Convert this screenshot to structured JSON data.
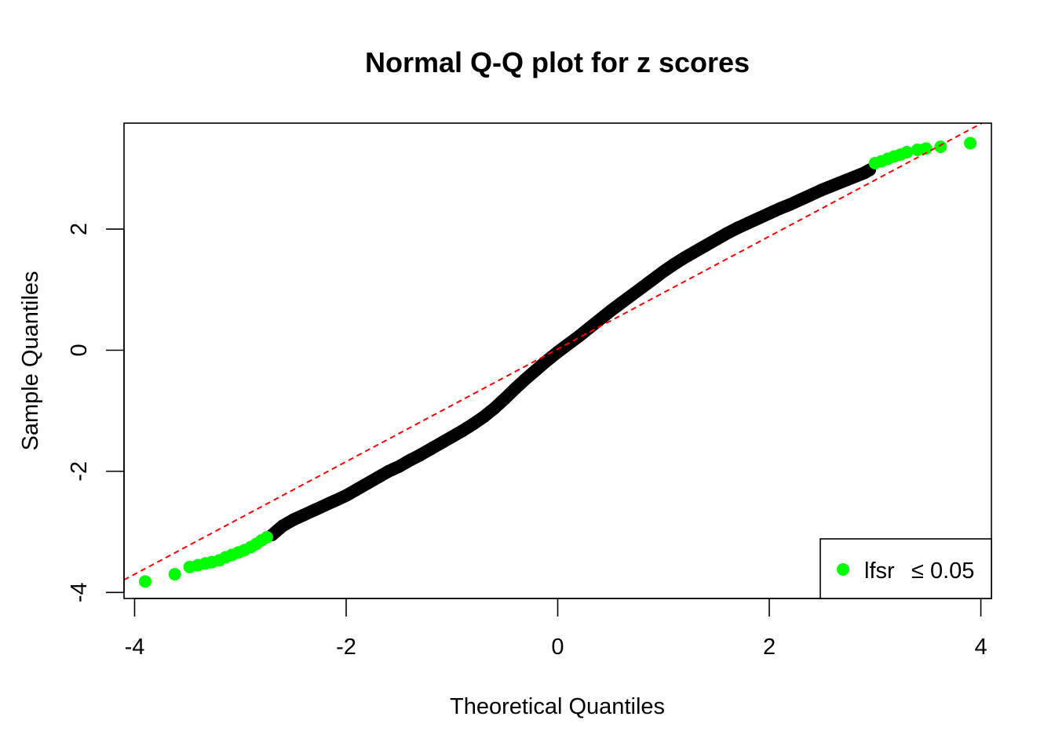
{
  "chart_data": {
    "type": "scatter",
    "title": "Normal Q-Q plot for z scores",
    "xlabel": "Theoretical Quantiles",
    "ylabel": "Sample Quantiles",
    "xlim": [
      -4.1,
      4.1
    ],
    "ylim": [
      -4.1,
      3.75
    ],
    "x_ticks": [
      -4,
      -2,
      0,
      2,
      4
    ],
    "y_ticks": [
      -4,
      -2,
      0,
      2
    ],
    "x_tick_labels": [
      "-4",
      "-2",
      "0",
      "2",
      "4"
    ],
    "y_tick_labels": [
      "-4",
      "-2",
      "0",
      "2"
    ],
    "grid": false,
    "colors": {
      "points": "#000000",
      "highlight": "#00ff00",
      "reference": "#ff0000"
    },
    "reference_line": {
      "style": "dashed",
      "intercept": 0.02,
      "slope": 0.93,
      "x_range": [
        -4.1,
        4.1
      ]
    },
    "series": [
      {
        "role": "main",
        "color": "#000000",
        "x": [
          -2.7,
          -2.6,
          -2.5,
          -2.4,
          -2.3,
          -2.2,
          -2.1,
          -2.0,
          -1.9,
          -1.8,
          -1.7,
          -1.6,
          -1.5,
          -1.4,
          -1.3,
          -1.2,
          -1.1,
          -1.0,
          -0.9,
          -0.8,
          -0.7,
          -0.6,
          -0.5,
          -0.4,
          -0.3,
          -0.2,
          -0.1,
          0.0,
          0.1,
          0.2,
          0.3,
          0.4,
          0.5,
          0.6,
          0.7,
          0.8,
          0.9,
          1.0,
          1.1,
          1.2,
          1.3,
          1.4,
          1.5,
          1.6,
          1.7,
          1.8,
          1.9,
          2.0,
          2.1,
          2.2,
          2.3,
          2.4,
          2.5,
          2.6,
          2.7,
          2.8,
          2.9,
          2.95
        ],
        "y": [
          -3.05,
          -2.9,
          -2.8,
          -2.72,
          -2.64,
          -2.56,
          -2.48,
          -2.4,
          -2.3,
          -2.2,
          -2.1,
          -2.0,
          -1.92,
          -1.82,
          -1.73,
          -1.63,
          -1.53,
          -1.43,
          -1.33,
          -1.22,
          -1.1,
          -0.96,
          -0.8,
          -0.63,
          -0.47,
          -0.32,
          -0.17,
          -0.03,
          0.1,
          0.23,
          0.37,
          0.51,
          0.65,
          0.78,
          0.91,
          1.04,
          1.17,
          1.3,
          1.42,
          1.53,
          1.63,
          1.73,
          1.83,
          1.93,
          2.02,
          2.1,
          2.18,
          2.26,
          2.34,
          2.41,
          2.49,
          2.57,
          2.65,
          2.72,
          2.79,
          2.86,
          2.93,
          2.98
        ]
      },
      {
        "role": "highlight",
        "color": "#00ff00",
        "x": [
          -3.9,
          -3.62,
          -3.48,
          -3.4,
          -3.33,
          -3.27,
          -3.2,
          -3.14,
          -3.08,
          -3.02,
          -2.96,
          -2.9,
          -2.85,
          -2.8,
          -2.75,
          3.0,
          3.06,
          3.12,
          3.18,
          3.24,
          3.3,
          3.4,
          3.48,
          3.62,
          3.9
        ],
        "y": [
          -3.82,
          -3.7,
          -3.58,
          -3.55,
          -3.52,
          -3.5,
          -3.47,
          -3.42,
          -3.38,
          -3.34,
          -3.3,
          -3.25,
          -3.2,
          -3.14,
          -3.09,
          3.09,
          3.12,
          3.16,
          3.2,
          3.23,
          3.27,
          3.31,
          3.33,
          3.36,
          3.42
        ]
      }
    ],
    "legend": {
      "position": "bottom-right",
      "entries": [
        {
          "label": "lfsr",
          "symbol_text": "≤ 0.05",
          "color": "#00ff00",
          "marker": "filled-circle"
        }
      ]
    }
  }
}
